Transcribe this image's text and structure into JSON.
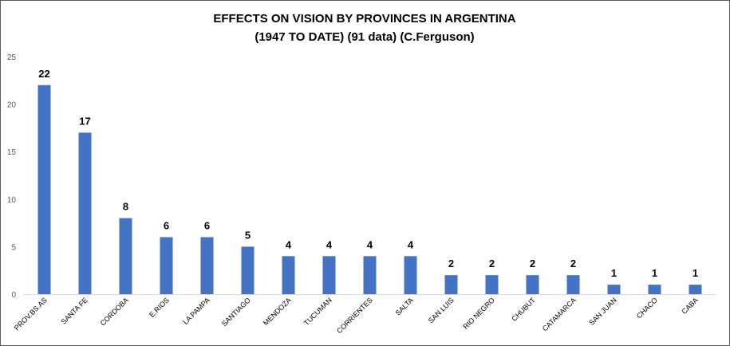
{
  "chart_data": {
    "type": "bar",
    "title": "EFFECTS ON VISION BY PROVINCES IN ARGENTINA",
    "subtitle": "(1947 TO DATE) (91 data) (C.Ferguson)",
    "categories": [
      "PROV.BS.AS",
      "SANTA FE",
      "CORDOBA",
      "E.RIOS",
      "LA PAMPA",
      "SANTIAGO",
      "MENDOZA",
      "TUCUMAN",
      "CORRIENTES",
      "SALTA",
      "SAN LUIS",
      "RIO NEGRO",
      "CHUBUT",
      "CATAMARCA",
      "SAN JUAN",
      "CHACO",
      "CABA"
    ],
    "values": [
      22,
      17,
      8,
      6,
      6,
      5,
      4,
      4,
      4,
      4,
      2,
      2,
      2,
      2,
      1,
      1,
      1
    ],
    "data_labels": [
      "22",
      "17",
      "8",
      "6",
      "6",
      "5",
      "4",
      "4",
      "4",
      "4",
      "2",
      "2",
      "2",
      "2",
      "1",
      "1",
      "1"
    ],
    "ylim": [
      0,
      25
    ],
    "yticks": [
      "0",
      "5",
      "10",
      "15",
      "20",
      "25"
    ],
    "grid": false,
    "legend": "none",
    "bar_color": "#4472c4"
  }
}
